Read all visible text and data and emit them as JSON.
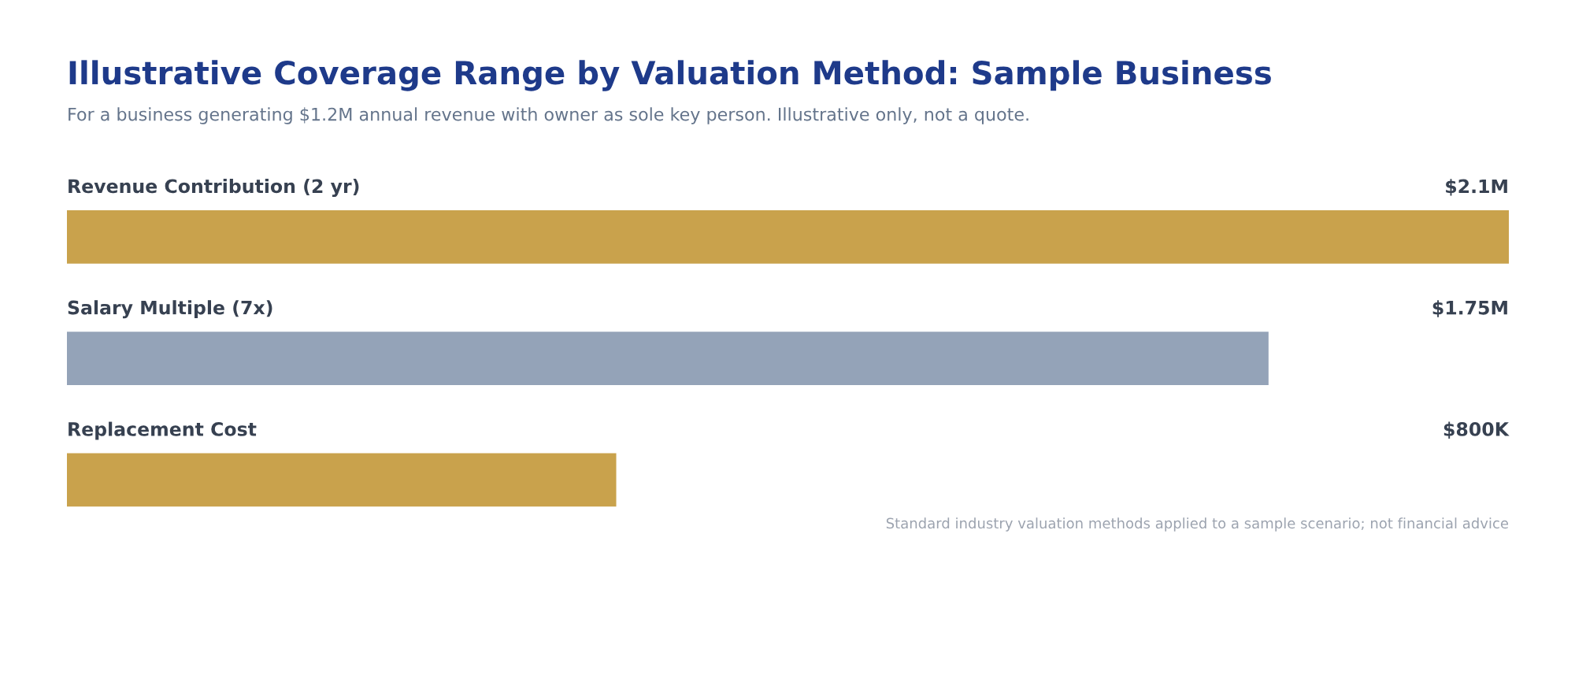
{
  "chart_data": {
    "type": "bar",
    "orientation": "horizontal",
    "title": "Illustrative Coverage Range by Valuation Method: Sample Business",
    "subtitle": "For a business generating $1.2M annual revenue with owner as sole key person. Illustrative only, not a quote.",
    "categories": [
      "Revenue Contribution (2 yr)",
      "Salary Multiple (7x)",
      "Replacement Cost"
    ],
    "values": [
      2100000,
      1750000,
      800000
    ],
    "value_labels": [
      "$2.1M",
      "$1.75M",
      "$800K"
    ],
    "colors": [
      "#c9a24c",
      "#94a3b8",
      "#c9a24c"
    ],
    "annotations": [
      "Standard industry valuation methods applied to a sample scenario; not financial advice"
    ]
  }
}
